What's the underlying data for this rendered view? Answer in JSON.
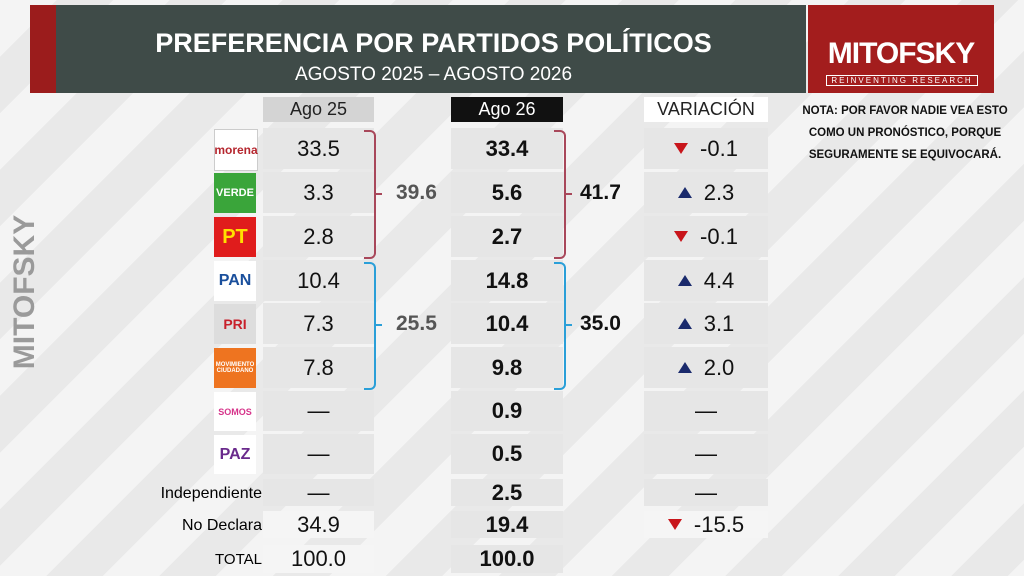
{
  "header": {
    "title": "PREFERENCIA POR PARTIDOS POLÍTICOS",
    "subtitle": "AGOSTO 2025 – AGOSTO 2026"
  },
  "logo": {
    "name": "MITOFSKY",
    "tagline": "REINVENTING RESEARCH"
  },
  "watermark": "MITOFSKY",
  "note": [
    "NOTA: POR FAVOR NADIE VEA ESTO",
    "COMO UN PRONÓSTICO, PORQUE",
    "SEGURAMENTE SE EQUIVOCARÁ."
  ],
  "table": {
    "columns": [
      "Ago 25",
      "Ago 26",
      "VARIACIÓN"
    ],
    "rows": [
      {
        "party": "morena",
        "ago25": "33.5",
        "ago26": "33.4",
        "variation": "-0.1"
      },
      {
        "party": "VERDE",
        "ago25": "3.3",
        "ago26": "5.6",
        "variation": "2.3"
      },
      {
        "party": "PT",
        "ago25": "2.8",
        "ago26": "2.7",
        "variation": "-0.1"
      },
      {
        "party": "PAN",
        "ago25": "10.4",
        "ago26": "14.8",
        "variation": "4.4"
      },
      {
        "party": "PRI",
        "ago25": "7.3",
        "ago26": "10.4",
        "variation": "3.1"
      },
      {
        "party": "MOVIMIENTO CIUDADANO",
        "ago25": "7.8",
        "ago26": "9.8",
        "variation": "2.0"
      },
      {
        "party": "SOMOS",
        "ago25": "—",
        "ago26": "0.9",
        "variation": "—"
      },
      {
        "party": "PAZ",
        "ago25": "—",
        "ago26": "0.5",
        "variation": "—"
      },
      {
        "party": "Independiente",
        "ago25": "—",
        "ago26": "2.5",
        "variation": "—"
      },
      {
        "party": "No Declara",
        "ago25": "34.9",
        "ago26": "19.4",
        "variation": "-15.5"
      },
      {
        "party": "TOTAL",
        "ago25": "100.0",
        "ago26": "100.0",
        "variation": null
      }
    ]
  },
  "groups": [
    {
      "ago25": "39.6",
      "ago26": "41.7",
      "color": "#a8475a"
    },
    {
      "ago25": "25.5",
      "ago26": "35.0",
      "color": "#2a9fd8"
    }
  ]
}
